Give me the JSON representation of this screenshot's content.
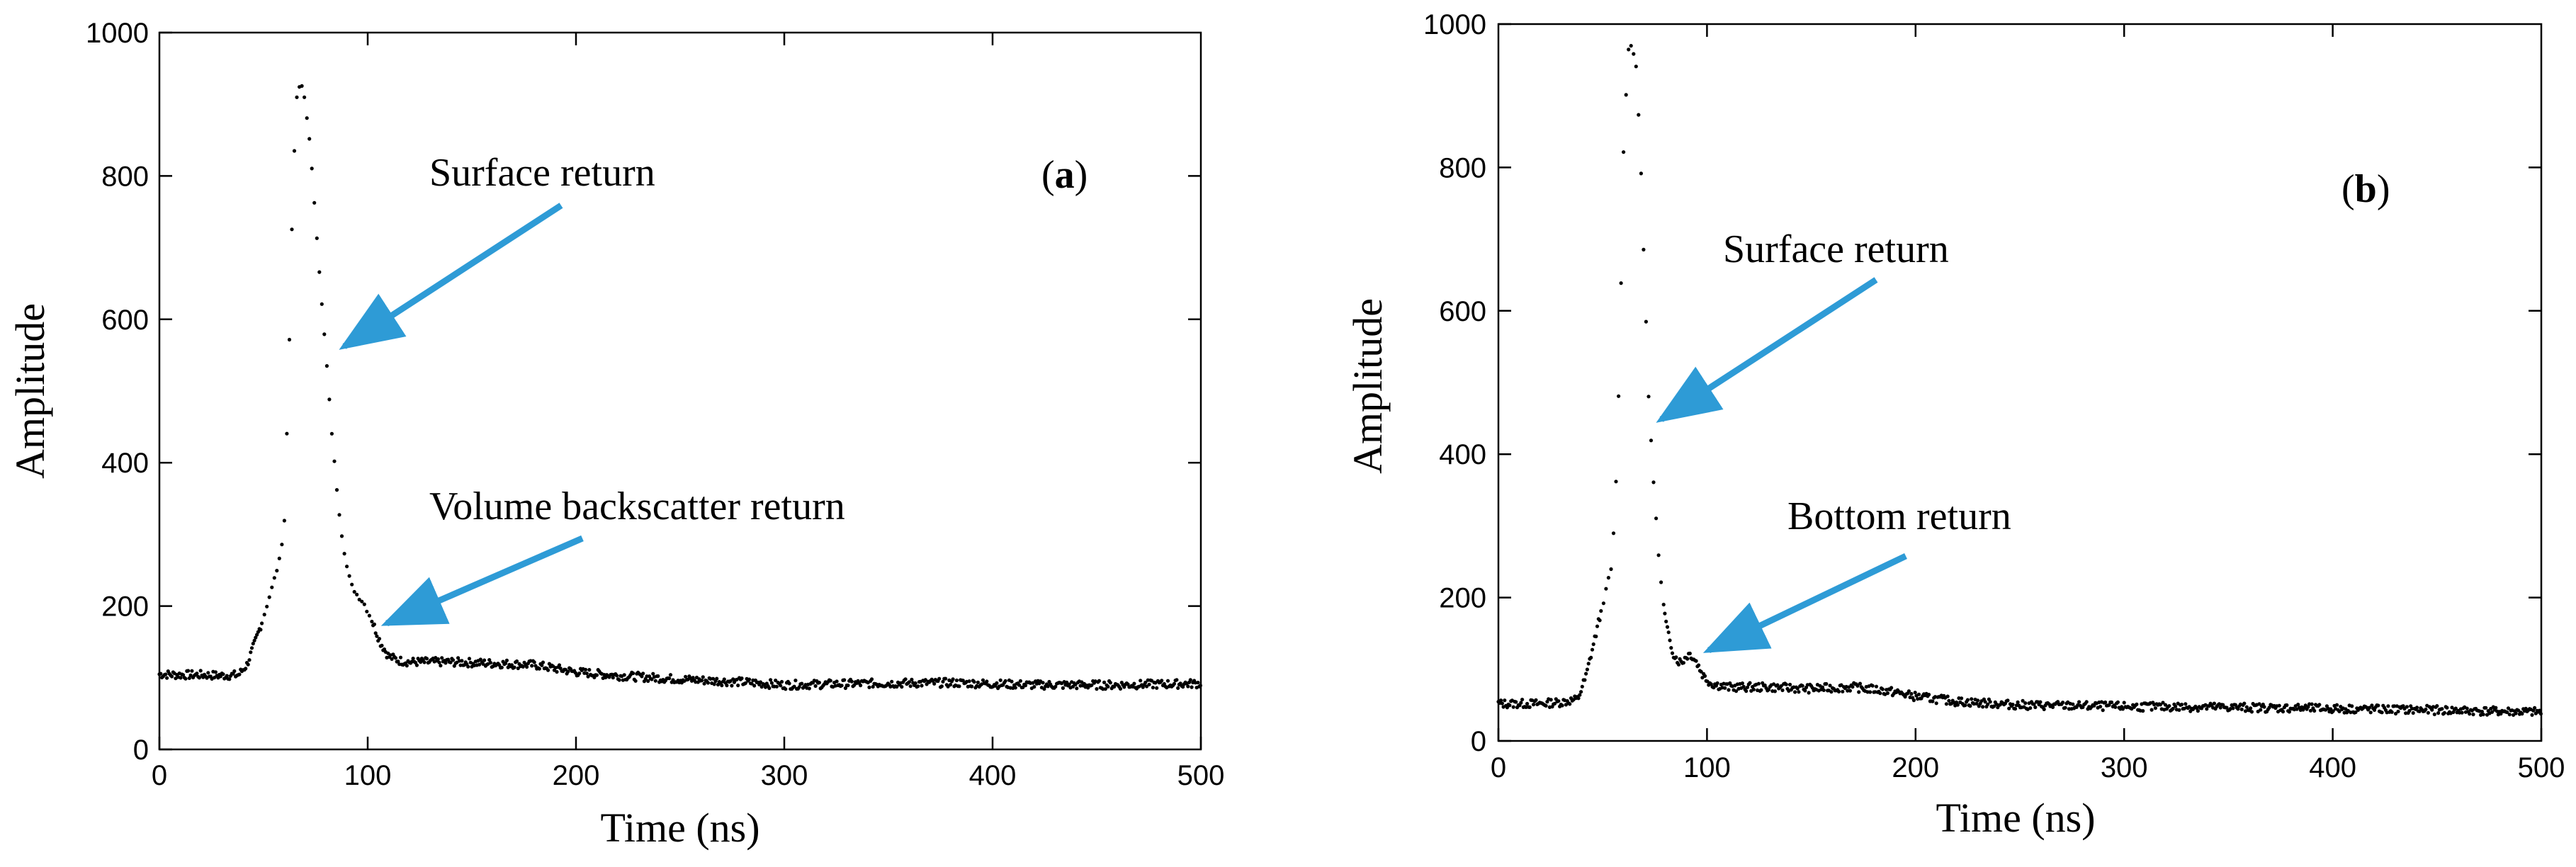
{
  "chart_data": [
    {
      "type": "scatter",
      "panel": "a",
      "panel_label_open": "(",
      "panel_label_letter": "a",
      "panel_label_close": ")",
      "xlabel": "Time (ns)",
      "ylabel": "Amplitude",
      "xlim": [
        0,
        500
      ],
      "ylim": [
        0,
        1000
      ],
      "xticks": [
        "0",
        "100",
        "200",
        "300",
        "400",
        "500"
      ],
      "yticks": [
        "0",
        "200",
        "400",
        "600",
        "800",
        "1000"
      ],
      "grid": false,
      "profile": [
        [
          0,
          105
        ],
        [
          10,
          104
        ],
        [
          20,
          104
        ],
        [
          30,
          103
        ],
        [
          38,
          104
        ],
        [
          42,
          118
        ],
        [
          46,
          150
        ],
        [
          50,
          185
        ],
        [
          54,
          225
        ],
        [
          58,
          268
        ],
        [
          60,
          320
        ],
        [
          62,
          520
        ],
        [
          64,
          780
        ],
        [
          66,
          910
        ],
        [
          68,
          930
        ],
        [
          70,
          905
        ],
        [
          72,
          850
        ],
        [
          74,
          780
        ],
        [
          76,
          700
        ],
        [
          78,
          620
        ],
        [
          80,
          550
        ],
        [
          82,
          470
        ],
        [
          84,
          400
        ],
        [
          86,
          340
        ],
        [
          88,
          290
        ],
        [
          90,
          255
        ],
        [
          92,
          230
        ],
        [
          95,
          215
        ],
        [
          98,
          205
        ],
        [
          102,
          180
        ],
        [
          106,
          150
        ],
        [
          110,
          130
        ],
        [
          115,
          124
        ],
        [
          120,
          122
        ],
        [
          140,
          122
        ],
        [
          160,
          120
        ],
        [
          180,
          118
        ],
        [
          200,
          108
        ],
        [
          220,
          103
        ],
        [
          250,
          98
        ],
        [
          280,
          94
        ],
        [
          300,
          90
        ],
        [
          340,
          92
        ],
        [
          380,
          93
        ],
        [
          420,
          90
        ],
        [
          460,
          90
        ],
        [
          500,
          92
        ]
      ],
      "annotations": [
        {
          "text": "Surface return",
          "target": [
            86,
            555
          ]
        },
        {
          "text": "Volume backscatter return",
          "target": [
            105,
            170
          ]
        }
      ],
      "arrow_color": "#2E9BD6"
    },
    {
      "type": "scatter",
      "panel": "b",
      "panel_label_open": "(",
      "panel_label_letter": "b",
      "panel_label_close": ")",
      "xlabel": "Time (ns)",
      "ylabel": "Amplitude",
      "xlim": [
        0,
        500
      ],
      "ylim": [
        0,
        1000
      ],
      "xticks": [
        "0",
        "100",
        "200",
        "300",
        "400",
        "500"
      ],
      "yticks": [
        "0",
        "200",
        "400",
        "600",
        "800",
        "1000"
      ],
      "grid": false,
      "profile": [
        [
          0,
          52
        ],
        [
          10,
          52
        ],
        [
          20,
          52
        ],
        [
          30,
          54
        ],
        [
          38,
          58
        ],
        [
          42,
          90
        ],
        [
          46,
          140
        ],
        [
          50,
          190
        ],
        [
          54,
          240
        ],
        [
          56,
          320
        ],
        [
          58,
          520
        ],
        [
          60,
          820
        ],
        [
          62,
          960
        ],
        [
          64,
          975
        ],
        [
          66,
          940
        ],
        [
          68,
          830
        ],
        [
          70,
          650
        ],
        [
          72,
          480
        ],
        [
          74,
          380
        ],
        [
          76,
          290
        ],
        [
          78,
          220
        ],
        [
          80,
          170
        ],
        [
          82,
          140
        ],
        [
          84,
          122
        ],
        [
          86,
          112
        ],
        [
          88,
          110
        ],
        [
          90,
          118
        ],
        [
          92,
          122
        ],
        [
          95,
          110
        ],
        [
          98,
          92
        ],
        [
          102,
          80
        ],
        [
          110,
          75
        ],
        [
          130,
          75
        ],
        [
          150,
          73
        ],
        [
          170,
          75
        ],
        [
          180,
          72
        ],
        [
          190,
          68
        ],
        [
          200,
          62
        ],
        [
          220,
          55
        ],
        [
          250,
          50
        ],
        [
          300,
          48
        ],
        [
          350,
          47
        ],
        [
          400,
          45
        ],
        [
          450,
          43
        ],
        [
          500,
          40
        ]
      ],
      "annotations": [
        {
          "text": "Surface return",
          "target": [
            73,
            440
          ]
        },
        {
          "text": "Bottom return",
          "target": [
            100,
            130
          ]
        }
      ],
      "arrow_color": "#2E9BD6"
    }
  ]
}
